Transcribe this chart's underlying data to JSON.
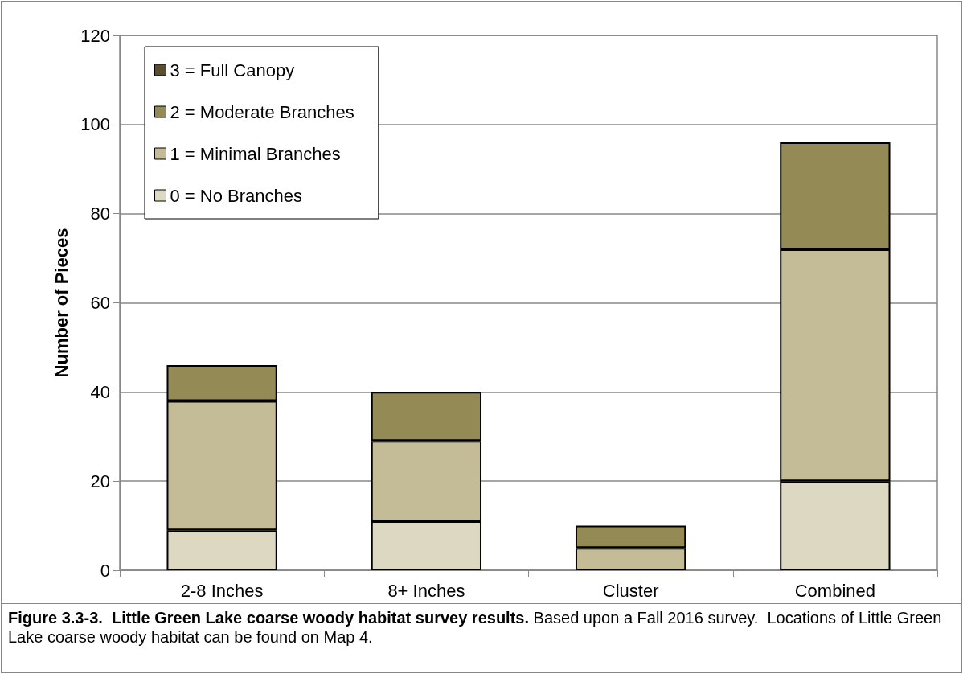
{
  "chart_data": {
    "type": "bar",
    "title": "Figure 3.3-3.  Little Green Lake coarse woody habitat survey results.",
    "annotations": [
      "Based upon a Fall 2016 survey.  Locations of Little Green Lake coarse woody habitat can be found on Map 4."
    ],
    "ylabel": "Number of Pieces",
    "categories": [
      "2-8 Inches",
      "8+ Inches",
      "Cluster",
      "Combined"
    ],
    "series": [
      {
        "name": "0 = No Branches",
        "color": "#ddd8c2",
        "values": [
          9,
          11,
          0,
          20
        ]
      },
      {
        "name": "1 = Minimal Branches",
        "color": "#c4bc97",
        "values": [
          29,
          18,
          5,
          52
        ]
      },
      {
        "name": "2 = Moderate Branches",
        "color": "#948a55",
        "values": [
          8,
          11,
          5,
          24
        ]
      },
      {
        "name": "3 = Full Canopy",
        "color": "#5a4e2f",
        "values": [
          0,
          0,
          0,
          0
        ]
      }
    ],
    "stacked": true,
    "ylim": [
      0,
      120
    ],
    "yticks": [
      0,
      20,
      40,
      60,
      80,
      100,
      120
    ],
    "grid": "y",
    "legend": "top left"
  }
}
